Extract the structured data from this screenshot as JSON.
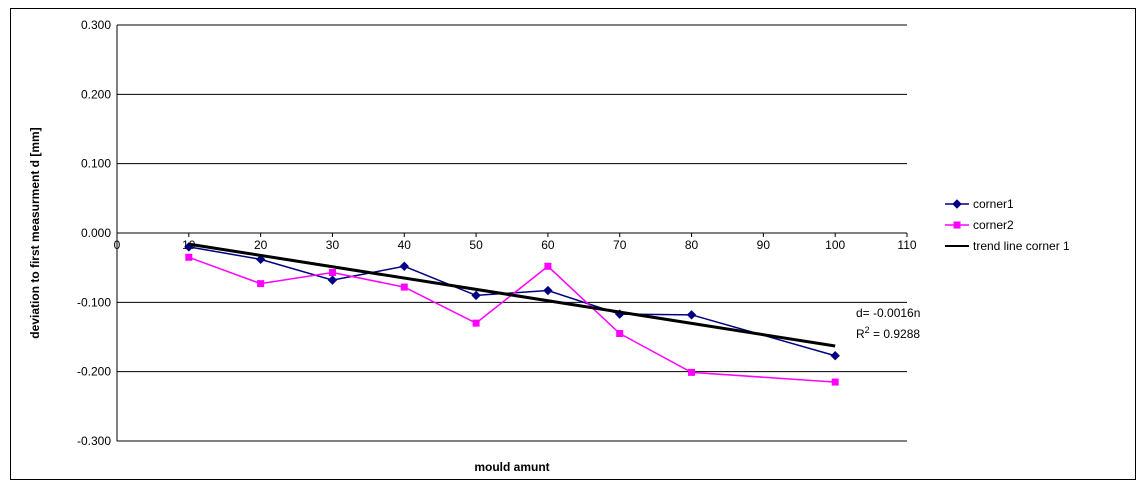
{
  "chart_data": {
    "type": "line",
    "title": "",
    "xlabel": "mould amunt",
    "ylabel": "deviation to first measurment d [mm]",
    "xlim": [
      0,
      110
    ],
    "ylim": [
      -0.3,
      0.3
    ],
    "x_ticks": [
      "0",
      "10",
      "20",
      "30",
      "40",
      "50",
      "60",
      "70",
      "80",
      "90",
      "100",
      "110"
    ],
    "y_ticks": [
      "0.300",
      "0.200",
      "0.100",
      "0.000",
      "-0.100",
      "-0.200",
      "-0.300"
    ],
    "grid": "horizontal",
    "legend_position": "right",
    "series": [
      {
        "name": "corner1",
        "color": "#000080",
        "marker": "diamond",
        "x": [
          10,
          20,
          30,
          40,
          50,
          60,
          70,
          80,
          100
        ],
        "y": [
          -0.02,
          -0.038,
          -0.068,
          -0.048,
          -0.09,
          -0.083,
          -0.117,
          -0.118,
          -0.177
        ]
      },
      {
        "name": "corner2",
        "color": "#ff00ff",
        "marker": "square",
        "x": [
          10,
          20,
          30,
          40,
          50,
          60,
          70,
          80,
          100
        ],
        "y": [
          -0.035,
          -0.073,
          -0.057,
          -0.078,
          -0.13,
          -0.048,
          -0.145,
          -0.201,
          -0.215
        ]
      },
      {
        "name": "trend line corner 1",
        "color": "#000000",
        "marker": "none",
        "x": [
          10,
          100
        ],
        "y": [
          -0.016,
          -0.163
        ]
      }
    ],
    "annotation": {
      "equation": "d= -0.0016n",
      "r2_label": "R",
      "r2_sup": "2",
      "r2_value": " = 0.9288"
    }
  }
}
